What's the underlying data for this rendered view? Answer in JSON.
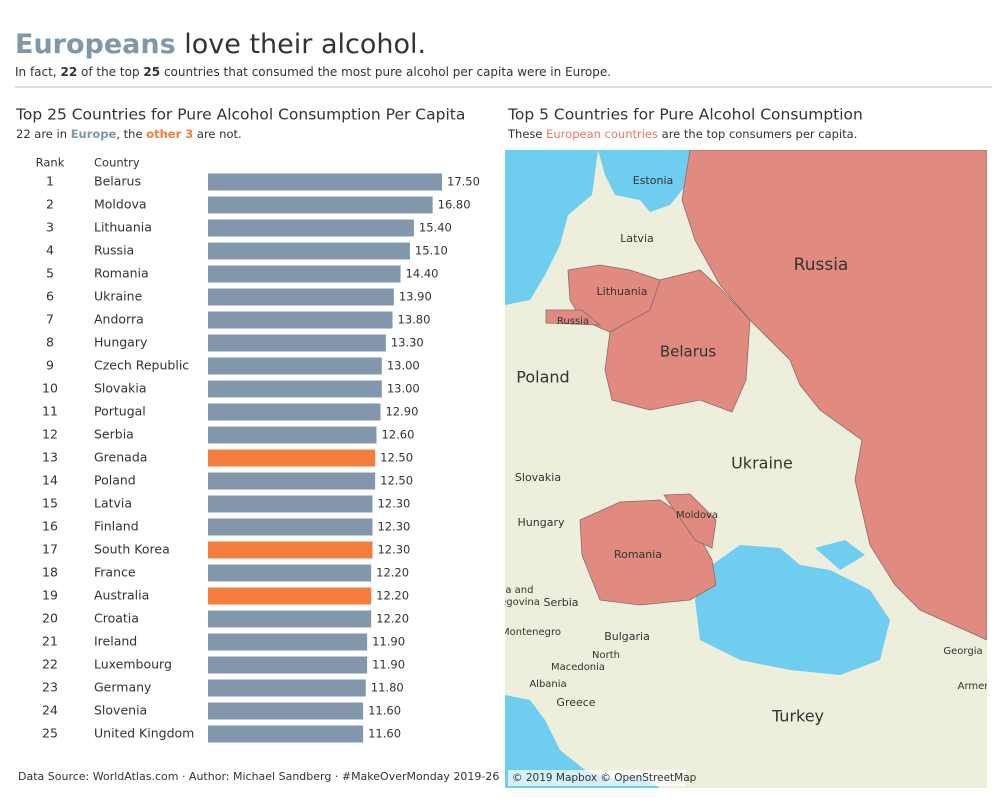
{
  "header": {
    "title": [
      "Europeans",
      "love their alcohol."
    ],
    "subtitle": [
      "In fact,",
      "22",
      "of the top",
      "25",
      "countries that consumed the most pure alcohol per capita were in Europe."
    ]
  },
  "chart_data": {
    "type": "bar",
    "title": "Top 25 Countries for Pure Alcohol Consumption Per Capita",
    "subtitle": [
      "22 are in",
      "Europe",
      ", the",
      "other 3",
      "are not."
    ],
    "rank_header": "Rank",
    "category_header": "Country",
    "ranks": [
      1,
      2,
      3,
      4,
      5,
      6,
      7,
      8,
      9,
      10,
      11,
      12,
      13,
      14,
      15,
      16,
      17,
      18,
      19,
      20,
      21,
      22,
      23,
      24,
      25
    ],
    "categories": [
      "Belarus",
      "Moldova",
      "Lithuania",
      "Russia",
      "Romania",
      "Ukraine",
      "Andorra",
      "Hungary",
      "Czech Republic",
      "Slovakia",
      "Portugal",
      "Serbia",
      "Grenada",
      "Poland",
      "Latvia",
      "Finland",
      "South Korea",
      "France",
      "Australia",
      "Croatia",
      "Ireland",
      "Luxembourg",
      "Germany",
      "Slovenia",
      "United Kingdom"
    ],
    "values": [
      17.5,
      16.8,
      15.4,
      15.1,
      14.4,
      13.9,
      13.8,
      13.3,
      13,
      13,
      12.9,
      12.6,
      12.5,
      12.5,
      12.3,
      12.3,
      12.3,
      12.2,
      12.2,
      12.2,
      11.9,
      11.9,
      11.8,
      11.6,
      11.6
    ],
    "value_labels": [
      "17.50",
      "16.80",
      "15.40",
      "15.10",
      "14.40",
      "13.90",
      "13.80",
      "13.30",
      "13.00",
      "13.00",
      "12.90",
      "12.60",
      "12.50",
      "12.50",
      "12.30",
      "12.30",
      "12.30",
      "12.20",
      "12.20",
      "12.20",
      "11.90",
      "11.90",
      "11.80",
      "11.60",
      "11.60"
    ],
    "colors": [
      "#8297ab",
      "#8297ab",
      "#8297ab",
      "#8297ab",
      "#8297ab",
      "#8297ab",
      "#8297ab",
      "#8297ab",
      "#8297ab",
      "#8297ab",
      "#8297ab",
      "#8297ab",
      "#f47c3c",
      "#8297ab",
      "#8297ab",
      "#8297ab",
      "#f47c3c",
      "#8297ab",
      "#f47c3c",
      "#8297ab",
      "#8297ab",
      "#8297ab",
      "#8297ab",
      "#8297ab",
      "#8297ab"
    ]
  },
  "map": {
    "title": "Top 5 Countries for Pure Alcohol Consumption",
    "subtitle": [
      "These",
      "European countries",
      "are the top consumers per capita."
    ],
    "labels": [
      "Estonia",
      "Latvia",
      "Russia",
      "Lithuania",
      "Russia",
      "Belarus",
      "Poland",
      "Ukraine",
      "Slovakia",
      "Hungary",
      "Moldova",
      "Romania",
      "ia and",
      "egovina",
      "Serbia",
      "Montenegro",
      "Bulgaria",
      "North",
      "Macedonia",
      "Georgia",
      "Albania",
      "Armer",
      "Greece",
      "Turkey"
    ],
    "attribution": "© 2019 Mapbox © OpenStreetMap"
  },
  "footer": [
    "Data Source:",
    "WorldAtlas.com",
    "· Author:",
    "Michael Sandberg",
    "· #MakeOverMonday",
    "2019-26"
  ]
}
